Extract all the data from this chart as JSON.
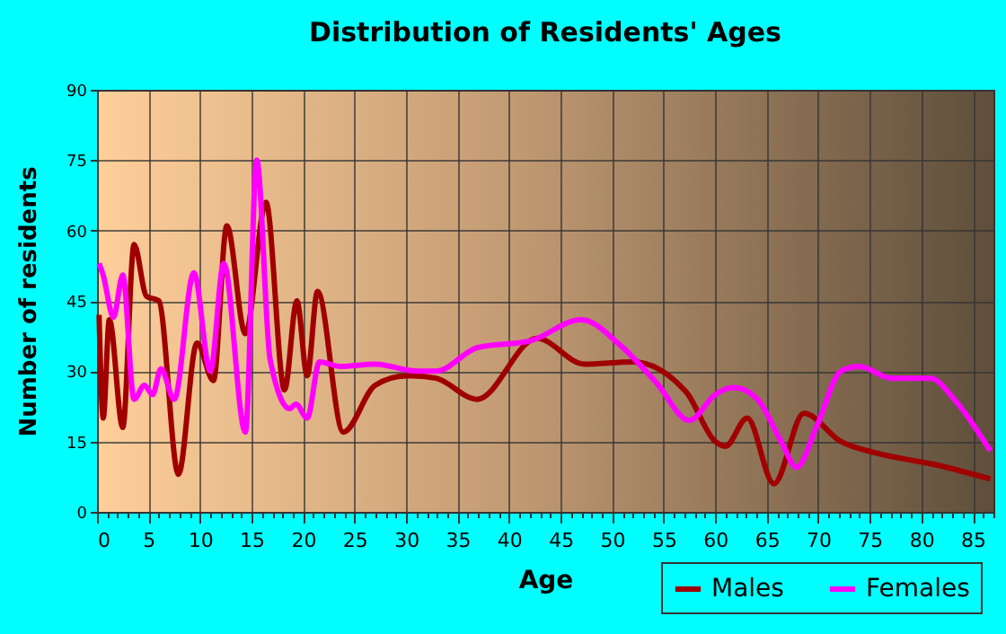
{
  "chart_data": {
    "type": "line",
    "title": "Distribution of Residents' Ages",
    "xlabel": "Age",
    "ylabel": "Number of residents",
    "xlim": [
      0,
      87
    ],
    "ylim": [
      0,
      90
    ],
    "xticks": [
      0,
      {
        "value": 1,
        "label": null
      },
      {
        "value": 2,
        "label": null
      },
      {
        "value": 3,
        "label": null
      },
      {
        "value": 4,
        "label": null
      },
      5,
      {
        "value": 6,
        "label": null
      },
      {
        "value": 7,
        "label": null
      },
      {
        "value": 8,
        "label": null
      },
      {
        "value": 9,
        "label": null
      },
      10,
      {
        "value": 11,
        "label": null
      },
      {
        "value": 12,
        "label": null
      },
      {
        "value": 13,
        "label": null
      },
      {
        "value": 14,
        "label": null
      },
      15,
      {
        "value": 16,
        "label": null
      },
      {
        "value": 17,
        "label": null
      },
      {
        "value": 18,
        "label": null
      },
      {
        "value": 19,
        "label": null
      },
      20,
      {
        "value": 21,
        "label": null
      },
      {
        "value": 22,
        "label": null
      },
      {
        "value": 23,
        "label": null
      },
      {
        "value": 24,
        "label": null
      },
      25,
      {
        "value": 26,
        "label": null
      },
      {
        "value": 27,
        "label": null
      },
      {
        "value": 28,
        "label": null
      },
      {
        "value": 29,
        "label": null
      },
      30,
      {
        "value": 31,
        "label": null
      },
      {
        "value": 32,
        "label": null
      },
      {
        "value": 33,
        "label": null
      },
      {
        "value": 34,
        "label": null
      },
      35,
      {
        "value": 36,
        "label": null
      },
      {
        "value": 37,
        "label": null
      },
      {
        "value": 38,
        "label": null
      },
      {
        "value": 39,
        "label": null
      },
      40,
      {
        "value": 41,
        "label": null
      },
      {
        "value": 42,
        "label": null
      },
      {
        "value": 43,
        "label": null
      },
      {
        "value": 44,
        "label": null
      },
      45,
      {
        "value": 46,
        "label": null
      },
      {
        "value": 47,
        "label": null
      },
      {
        "value": 48,
        "label": null
      },
      {
        "value": 49,
        "label": null
      },
      50,
      {
        "value": 51,
        "label": null
      },
      {
        "value": 52,
        "label": null
      },
      {
        "value": 53,
        "label": null
      },
      {
        "value": 54,
        "label": null
      },
      55,
      {
        "value": 56,
        "label": null
      },
      {
        "value": 57,
        "label": null
      },
      {
        "value": 58,
        "label": null
      },
      {
        "value": 59,
        "label": null
      },
      60,
      {
        "value": 61,
        "label": null
      },
      {
        "value": 62,
        "label": null
      },
      {
        "value": 63,
        "label": null
      },
      {
        "value": 64,
        "label": null
      },
      65,
      {
        "value": 66,
        "label": null
      },
      {
        "value": 67,
        "label": null
      },
      {
        "value": 68,
        "label": null
      },
      {
        "value": 69,
        "label": null
      },
      70,
      {
        "value": 71,
        "label": null
      },
      {
        "value": 72,
        "label": null
      },
      {
        "value": 73,
        "label": null
      },
      {
        "value": 74,
        "label": null
      },
      75,
      {
        "value": 76,
        "label": null
      },
      {
        "value": 77,
        "label": null
      },
      {
        "value": 78,
        "label": null
      },
      {
        "value": 79,
        "label": null
      },
      80,
      {
        "value": 81,
        "label": null
      },
      {
        "value": 82,
        "label": null
      },
      {
        "value": 83,
        "label": null
      },
      {
        "value": 84,
        "label": null
      },
      85,
      {
        "value": 86,
        "label": null
      },
      {
        "value": 87,
        "label": null
      }
    ],
    "yticks": [
      0,
      15,
      30,
      45,
      60,
      75,
      90
    ],
    "grid": true,
    "legend": "bottom right",
    "marker": "none",
    "line_style": "solid",
    "series": [
      {
        "name": "Males",
        "color": "#a00000",
        "x": [
          0.2,
          0.6,
          1.2,
          2.5,
          3.6,
          4.8,
          6,
          7.9,
          9.7,
          11.3,
          12.6,
          14.4,
          16.4,
          18.2,
          19.4,
          20.4,
          21.4,
          23.9,
          27,
          30,
          30.6,
          32.9,
          36.9,
          42.7,
          47.3,
          52,
          57.2,
          60,
          61,
          63.1,
          65.7,
          68.6,
          72.2,
          75.7,
          81.5,
          86.7
        ],
        "values": [
          42,
          20,
          41,
          18,
          57,
          46,
          45,
          8,
          36,
          28,
          61,
          38,
          66,
          26,
          45,
          29,
          47,
          17,
          27,
          29,
          29,
          28.5,
          24,
          37,
          31.5,
          32,
          25.5,
          15,
          14,
          20,
          6,
          21,
          15,
          12.5,
          10,
          7
        ]
      },
      {
        "name": "Females",
        "color": "#ff00ff",
        "x": [
          0.2,
          0.6,
          1.6,
          2.5,
          3.6,
          4.6,
          5.4,
          6.2,
          7.5,
          9.4,
          11,
          12.3,
          14.4,
          15.5,
          16.8,
          18.7,
          19.3,
          20.4,
          21.6,
          23.6,
          27,
          31.1,
          32.9,
          36.9,
          42.1,
          47,
          50.8,
          54.3,
          57.5,
          60,
          61.8,
          64.1,
          66.4,
          67.9,
          69.9,
          72.2,
          74,
          77.1,
          80.9,
          83.2,
          86.7
        ],
        "values": [
          53,
          50.5,
          41.5,
          50.5,
          24,
          27,
          25,
          30.5,
          24,
          51,
          30,
          53,
          17,
          75,
          32.5,
          22,
          23,
          20,
          32,
          31,
          31.5,
          30,
          30,
          35,
          36.5,
          41,
          35.5,
          27.5,
          19.5,
          25,
          26.5,
          24,
          15,
          9.5,
          18.5,
          30,
          31,
          28.5,
          28.5,
          24,
          13
        ]
      }
    ]
  }
}
